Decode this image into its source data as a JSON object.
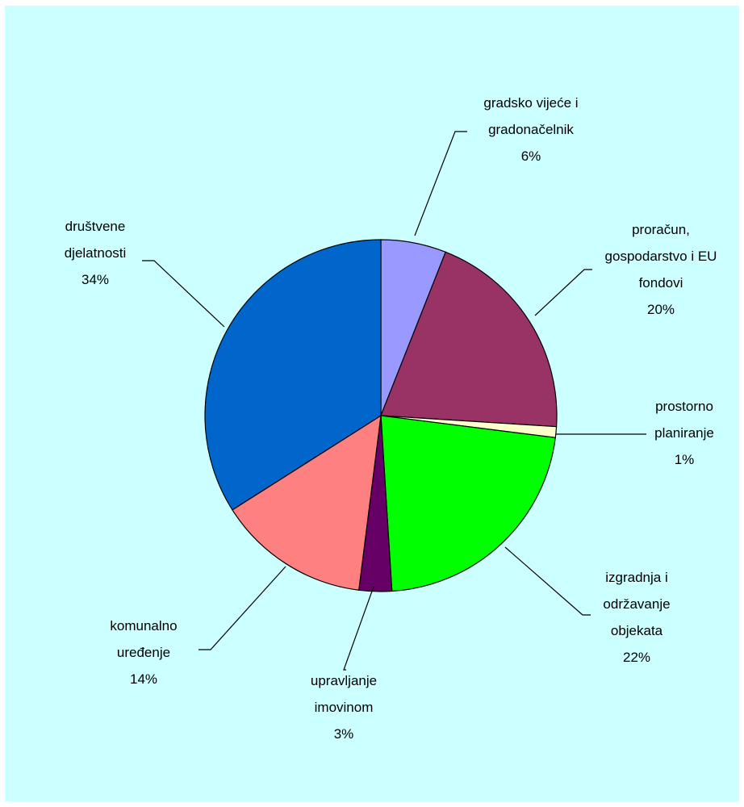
{
  "chart_data": {
    "type": "pie",
    "title": "",
    "slices": [
      {
        "label": "gradsko vijeće i gradonačelnik",
        "lines": [
          "gradsko vijeće i",
          "gradonačelnik"
        ],
        "percent_label": "6%",
        "value": 6,
        "color": "#9999ff"
      },
      {
        "label": "proračun, gospodarstvo i EU fondovi",
        "lines": [
          "proračun,",
          "gospodarstvo i EU",
          "fondovi"
        ],
        "percent_label": "20%",
        "value": 20,
        "color": "#993366"
      },
      {
        "label": "prostorno planiranje",
        "lines": [
          "prostorno",
          "planiranje"
        ],
        "percent_label": "1%",
        "value": 1,
        "color": "#ffffcc"
      },
      {
        "label": "izgradnja i održavanje objekata",
        "lines": [
          "izgradnja i",
          "održavanje",
          "objekata"
        ],
        "percent_label": "22%",
        "value": 22,
        "color": "#00ff00"
      },
      {
        "label": "upravljanje imovinom",
        "lines": [
          "upravljanje",
          "imovinom"
        ],
        "percent_label": "3%",
        "value": 3,
        "color": "#660066"
      },
      {
        "label": "komunalno uređenje",
        "lines": [
          "komunalno",
          "uređenje"
        ],
        "percent_label": "14%",
        "value": 14,
        "color": "#ff8080"
      },
      {
        "label": "društvene djelatnosti",
        "lines": [
          "društvene",
          "djelatnosti"
        ],
        "percent_label": "34%",
        "value": 34,
        "color": "#0066cc"
      }
    ],
    "legend": "none",
    "data_labels": "outside with leader lines"
  }
}
